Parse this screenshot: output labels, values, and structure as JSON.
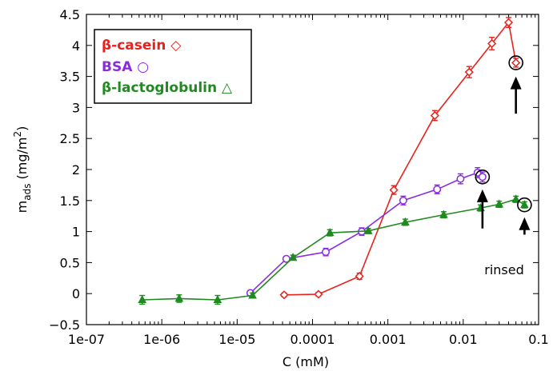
{
  "chart_data": {
    "type": "scatter",
    "title": "",
    "xlabel": "C (mM)",
    "ylabel": {
      "prefix": "m",
      "sub": "ads",
      "unit_open": " (mg/m",
      "sup": "2",
      "unit_close": ")"
    },
    "xscale": "log",
    "xlim": [
      1e-07,
      0.1
    ],
    "ylim": [
      -0.5,
      4.5
    ],
    "x_tick_values": [
      1e-07,
      1e-06,
      1e-05,
      0.0001,
      0.001,
      0.01,
      0.1
    ],
    "x_tick_labels": [
      "1e-07",
      "1e-06",
      "1e-05",
      "0.0001",
      "0.001",
      "0.01",
      "0.1"
    ],
    "y_tick_values": [
      -0.5,
      0,
      0.5,
      1,
      1.5,
      2,
      2.5,
      3,
      3.5,
      4,
      4.5
    ],
    "y_tick_labels": [
      "−0.5",
      "0",
      "0.5",
      "1",
      "1.5",
      "2",
      "2.5",
      "3",
      "3.5",
      "4",
      "4.5"
    ],
    "grid": false,
    "legend_position": "top-left",
    "series": [
      {
        "name": "β-casein",
        "legend_symbol": "◇",
        "color": "#e8211c",
        "marker": "diamond-open",
        "points": [
          {
            "x": 4.2e-05,
            "y": -0.02,
            "err": 0.03
          },
          {
            "x": 0.00012,
            "y": -0.01,
            "err": 0.03
          },
          {
            "x": 0.00042,
            "y": 0.28,
            "err": 0.05
          },
          {
            "x": 0.0012,
            "y": 1.67,
            "err": 0.07
          },
          {
            "x": 0.0042,
            "y": 2.87,
            "err": 0.08
          },
          {
            "x": 0.012,
            "y": 3.57,
            "err": 0.09
          },
          {
            "x": 0.024,
            "y": 4.03,
            "err": 0.1
          },
          {
            "x": 0.04,
            "y": 4.37,
            "err": 0.08
          },
          {
            "x": 0.05,
            "y": 3.72,
            "err": 0.07
          }
        ]
      },
      {
        "name": "BSA",
        "legend_symbol": "○",
        "color": "#8a2be2",
        "marker": "circle-open",
        "points": [
          {
            "x": 1.5e-05,
            "y": 0.01,
            "err": 0.04
          },
          {
            "x": 4.5e-05,
            "y": 0.56,
            "err": 0.04
          },
          {
            "x": 0.00015,
            "y": 0.67,
            "err": 0.06
          },
          {
            "x": 0.00045,
            "y": 1.0,
            "err": 0.06
          },
          {
            "x": 0.0016,
            "y": 1.5,
            "err": 0.07
          },
          {
            "x": 0.0045,
            "y": 1.68,
            "err": 0.07
          },
          {
            "x": 0.0092,
            "y": 1.85,
            "err": 0.08
          },
          {
            "x": 0.0155,
            "y": 1.95,
            "err": 0.08
          },
          {
            "x": 0.018,
            "y": 1.88,
            "err": 0.08
          }
        ]
      },
      {
        "name": "β-lactoglobulin",
        "legend_symbol": "△",
        "color": "#1f8a1f",
        "marker": "triangle-filled",
        "points": [
          {
            "x": 5.5e-07,
            "y": -0.1,
            "err": 0.07
          },
          {
            "x": 1.7e-06,
            "y": -0.08,
            "err": 0.06
          },
          {
            "x": 5.5e-06,
            "y": -0.1,
            "err": 0.07
          },
          {
            "x": 1.6e-05,
            "y": -0.03,
            "err": 0.04
          },
          {
            "x": 5.5e-05,
            "y": 0.58,
            "err": 0.04
          },
          {
            "x": 0.00017,
            "y": 0.98,
            "err": 0.05
          },
          {
            "x": 0.00055,
            "y": 1.01,
            "err": 0.04
          },
          {
            "x": 0.0017,
            "y": 1.15,
            "err": 0.05
          },
          {
            "x": 0.0055,
            "y": 1.27,
            "err": 0.05
          },
          {
            "x": 0.017,
            "y": 1.38,
            "err": 0.05
          },
          {
            "x": 0.03,
            "y": 1.44,
            "err": 0.05
          },
          {
            "x": 0.05,
            "y": 1.52,
            "err": 0.05
          },
          {
            "x": 0.065,
            "y": 1.43,
            "err": 0.05
          }
        ]
      }
    ],
    "annotations": {
      "rinsed_label": "rinsed",
      "circled_points": [
        {
          "x": 0.05,
          "y": 3.72
        },
        {
          "x": 0.018,
          "y": 1.88
        },
        {
          "x": 0.065,
          "y": 1.43
        }
      ],
      "arrows": [
        {
          "x": 0.05,
          "y_tail": 2.9,
          "y_head": 3.5
        },
        {
          "x": 0.018,
          "y_tail": 1.05,
          "y_head": 1.68
        },
        {
          "x": 0.065,
          "y_tail": 0.95,
          "y_head": 1.23
        }
      ]
    }
  }
}
